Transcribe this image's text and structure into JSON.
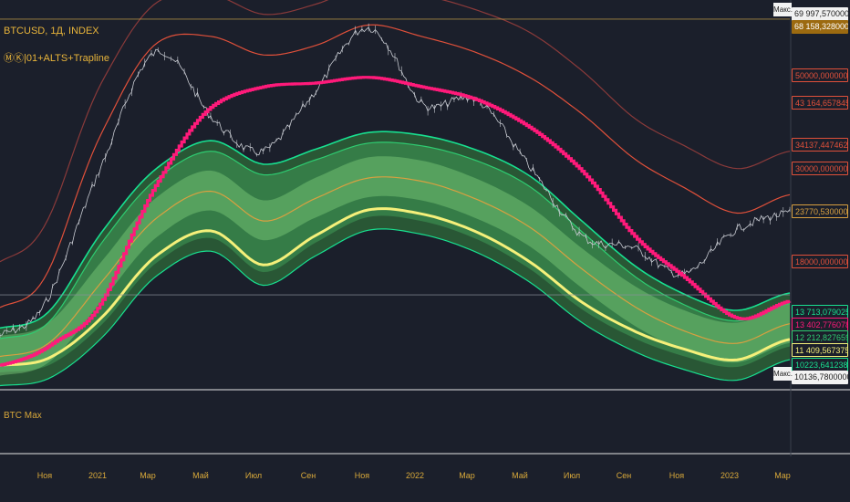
{
  "legend": {
    "symbol": "BTCUSD, 1Д, INDEX",
    "indicator": "ⓂⓀ|01+ALTS+Trapline"
  },
  "pane2": {
    "label": "BTC Мах"
  },
  "max_labels": [
    "Макс.",
    "Макс."
  ],
  "colors": {
    "background": "#1b1f2b",
    "price": "#c8cbd2",
    "ma": "#ff1a7a",
    "envelope_outer": "#8a3a3a",
    "envelope_inner": "#e0503a",
    "band_fill_dark": "#2f6b3a",
    "band_fill_mid": "#3f9a55",
    "band_fill_light": "#7fcf7a",
    "band_line_teal": "#18e090",
    "band_line_green": "#2ecc71",
    "band_line_yellow": "#f5f07a",
    "band_mid_orange": "#d8a040",
    "axis_text": "#d9a93a"
  },
  "price_tags": [
    {
      "text": "69 997,5700000000000",
      "bg": "#f2f2f2",
      "fg": "#222222",
      "price": 69997.57
    },
    {
      "text": "68 158,328000000008192",
      "bg": "#9c6a10",
      "fg": "#ffffff",
      "price": 68158.328
    },
    {
      "text": "50000,0000000000000",
      "bg": "#1b1f2b",
      "fg": "#e0503a",
      "price": 50000
    },
    {
      "text": "43 164,6578459786144",
      "bg": "#1b1f2b",
      "fg": "#e0503a",
      "price": 43164.66
    },
    {
      "text": "34137,4474627262912",
      "bg": "#1b1f2b",
      "fg": "#e0503a",
      "price": 34137.45
    },
    {
      "text": "30000,0000000000000",
      "bg": "#1b1f2b",
      "fg": "#e0503a",
      "price": 30000
    },
    {
      "text": "23770,5300000000000",
      "bg": "#1b1f2b",
      "fg": "#d8a040",
      "price": 23770.53
    },
    {
      "text": "18000,0000000000000",
      "bg": "#1b1f2b",
      "fg": "#e0503a",
      "price": 18000
    },
    {
      "text": "13 713,0790250450708",
      "bg": "#1b1f2b",
      "fg": "#18e090",
      "price": 13713.08
    },
    {
      "text": "13 402,7760788473072",
      "bg": "#1b1f2b",
      "fg": "#ff1a7a",
      "price": 13402.78
    },
    {
      "text": "12 212,8276590233180",
      "bg": "#1b1f2b",
      "fg": "#2ecc71",
      "price": 12212.83
    },
    {
      "text": "11 409,567375000061952",
      "bg": "#1b1f2b",
      "fg": "#f5f07a",
      "price": 11409.57
    },
    {
      "text": "10223,6412381466032",
      "bg": "#1b1f2b",
      "fg": "#18e090",
      "price": 10223.64
    },
    {
      "text": "10136,780000000000",
      "bg": "#f2f2f2",
      "fg": "#222222",
      "price": 10136.78
    }
  ],
  "x_axis": [
    "Ноя",
    "2021",
    "Мар",
    "Май",
    "Июл",
    "Сен",
    "Ноя",
    "2022",
    "Мар",
    "Май",
    "Июл",
    "Сен",
    "Ноя",
    "2023",
    "Мар"
  ],
  "chart_data": {
    "type": "line",
    "x": [
      "2020-10",
      "2020-11",
      "2021-01",
      "2021-03",
      "2021-05",
      "2021-07",
      "2021-09",
      "2021-11",
      "2022-01",
      "2022-03",
      "2022-05",
      "2022-07",
      "2022-09",
      "2022-11",
      "2023-01",
      "2023-03"
    ],
    "series": [
      {
        "role": "price",
        "values": [
          12000,
          15500,
          32000,
          57000,
          40000,
          33000,
          46000,
          65000,
          43000,
          44000,
          31000,
          21000,
          19500,
          16800,
          21500,
          23500
        ]
      },
      {
        "role": "moving-average",
        "values": [
          10200,
          11500,
          15000,
          28000,
          42000,
          47000,
          48000,
          49500,
          47000,
          44000,
          38000,
          30000,
          21000,
          16500,
          13200,
          14500
        ]
      },
      {
        "role": "envelope-outer",
        "values": [
          18000,
          24000,
          50000,
          75000,
          78000,
          70000,
          74000,
          82000,
          78000,
          72000,
          64000,
          52000,
          40000,
          34000,
          30000,
          33000
        ]
      },
      {
        "role": "envelope-inner",
        "values": [
          14000,
          18000,
          38000,
          60000,
          62000,
          56000,
          59000,
          66000,
          62000,
          57000,
          50000,
          41000,
          32000,
          27000,
          23500,
          26000
        ]
      },
      {
        "role": "band-top",
        "values": [
          11800,
          13200,
          20500,
          28500,
          33000,
          29000,
          31500,
          34500,
          34000,
          31500,
          27500,
          21500,
          16800,
          14200,
          13000,
          14300
        ]
      },
      {
        "role": "band-middle",
        "values": [
          10700,
          11700,
          16500,
          23000,
          26500,
          22500,
          25500,
          28500,
          28000,
          25500,
          22000,
          17500,
          14200,
          12300,
          11500,
          12800
        ]
      },
      {
        "role": "band-bottom",
        "values": [
          9800,
          10300,
          13000,
          18000,
          20500,
          17000,
          20000,
          23000,
          22500,
          20500,
          17500,
          14000,
          11900,
          10700,
          10100,
          11300
        ]
      }
    ],
    "ylim": [
      9000,
      72000
    ],
    "scale": "log",
    "grid": false,
    "horizontal_lines": [
      68158.328,
      15000
    ]
  }
}
